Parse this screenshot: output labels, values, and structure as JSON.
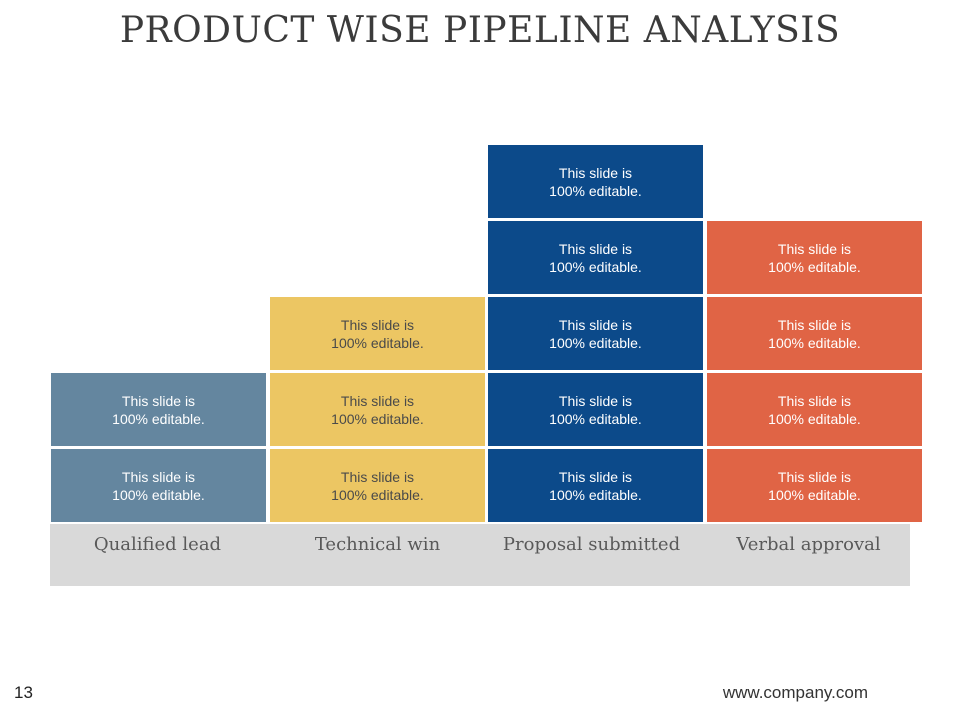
{
  "slide": {
    "title": "PRODUCT WISE PIPELINE ANALYSIS",
    "page_number": "13",
    "footer_url": "www.company.com"
  },
  "colors": {
    "qualified_lead": "#64869f",
    "technical_win": "#ecc663",
    "proposal_submitted": "#0c4a8a",
    "verbal_approval": "#e06445",
    "label_bar": "#d9d9d9"
  },
  "stages": [
    {
      "label": "Qualified lead",
      "color_key": "qualified_lead",
      "text_style": "light-text",
      "blocks": [
        "This slide is\n100% editable.",
        "This slide is\n100% editable."
      ]
    },
    {
      "label": "Technical win",
      "color_key": "technical_win",
      "text_style": "dark-text",
      "blocks": [
        "This slide is\n100% editable.",
        "This slide is\n100% editable.",
        "This slide is\n100% editable."
      ]
    },
    {
      "label": "Proposal submitted",
      "color_key": "proposal_submitted",
      "text_style": "light-text",
      "blocks": [
        "This slide is\n100% editable.",
        "This slide is\n100% editable.",
        "This slide is\n100% editable.",
        "This slide is\n100% editable.",
        "This slide is\n100% editable."
      ]
    },
    {
      "label": "Verbal approval",
      "color_key": "verbal_approval",
      "text_style": "light-text",
      "blocks": [
        "This slide is\n100% editable.",
        "This slide is\n100% editable.",
        "This slide is\n100% editable.",
        "This slide is\n100% editable."
      ]
    }
  ]
}
